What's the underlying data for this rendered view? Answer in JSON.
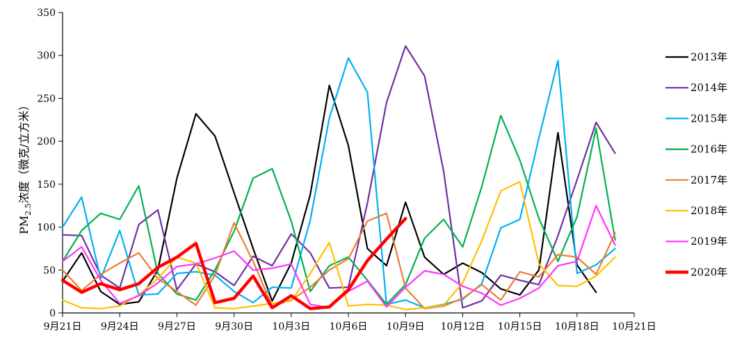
{
  "chart_data": {
    "type": "line",
    "title": "",
    "ylabel": "PM2.5浓度（微克/立方米）",
    "ylabel_parts": {
      "pre": "PM",
      "sub": "2.5",
      "post": "浓度（微克/立方米）"
    },
    "xlabel": "",
    "ylim": [
      0,
      350
    ],
    "yticks": [
      0,
      50,
      100,
      150,
      200,
      250,
      300,
      350
    ],
    "xlim": [
      0,
      30
    ],
    "xticks": [
      {
        "pos": 0,
        "label": "9月21日"
      },
      {
        "pos": 3,
        "label": "9月24日"
      },
      {
        "pos": 6,
        "label": "9月27日"
      },
      {
        "pos": 9,
        "label": "9月30日"
      },
      {
        "pos": 12,
        "label": "10月3日"
      },
      {
        "pos": 15,
        "label": "10月6日"
      },
      {
        "pos": 18,
        "label": "10月9日"
      },
      {
        "pos": 21,
        "label": "10月12日"
      },
      {
        "pos": 24,
        "label": "10月15日"
      },
      {
        "pos": 27,
        "label": "10月18日"
      },
      {
        "pos": 30,
        "label": "10月21日"
      }
    ],
    "grid": false,
    "legend_position": "right",
    "series": [
      {
        "name": "2013年",
        "color": "#000000",
        "highlight": false,
        "values": [
          37,
          70,
          25,
          10,
          13,
          50,
          157,
          232,
          206,
          140,
          75,
          14,
          58,
          138,
          265,
          195,
          75,
          55,
          129,
          65,
          45,
          58,
          47,
          28,
          21,
          50,
          210,
          56,
          24
        ]
      },
      {
        "name": "2014年",
        "color": "#7030A0",
        "highlight": false,
        "values": [
          91,
          90,
          44,
          29,
          103,
          120,
          27,
          57,
          48,
          32,
          66,
          55,
          92,
          70,
          29,
          30,
          128,
          245,
          311,
          276,
          165,
          6,
          14,
          44,
          38,
          33,
          90,
          155,
          222,
          186
        ]
      },
      {
        "name": "2015年",
        "color": "#00B0F0",
        "highlight": false,
        "values": [
          100,
          135,
          40,
          96,
          21,
          22,
          46,
          48,
          44,
          25,
          12,
          30,
          29,
          108,
          227,
          297,
          257,
          10,
          15,
          6,
          10,
          16,
          34,
          99,
          109,
          204,
          294,
          46,
          56,
          75
        ]
      },
      {
        "name": "2016年",
        "color": "#00B050",
        "highlight": false,
        "values": [
          60,
          96,
          116,
          109,
          148,
          46,
          22,
          15,
          50,
          95,
          157,
          168,
          107,
          25,
          55,
          65,
          38,
          10,
          33,
          87,
          109,
          77,
          147,
          230,
          178,
          110,
          60,
          112,
          215,
          85
        ]
      },
      {
        "name": "2017年",
        "color": "#ED7D31",
        "highlight": false,
        "values": [
          50,
          26,
          45,
          58,
          70,
          40,
          25,
          9,
          44,
          105,
          60,
          8,
          15,
          30,
          50,
          63,
          107,
          116,
          29,
          5,
          8,
          17,
          33,
          15,
          48,
          42,
          68,
          65,
          45,
          93
        ]
      },
      {
        "name": "2018年",
        "color": "#FFC000",
        "highlight": false,
        "values": [
          15,
          6,
          5,
          8,
          21,
          40,
          65,
          58,
          6,
          5,
          8,
          11,
          14,
          46,
          82,
          8,
          10,
          9,
          4,
          6,
          9,
          35,
          84,
          142,
          153,
          57,
          32,
          31,
          43,
          65
        ]
      },
      {
        "name": "2019年",
        "color": "#FF33FF",
        "highlight": false,
        "values": [
          60,
          77,
          38,
          11,
          20,
          35,
          54,
          57,
          64,
          72,
          50,
          52,
          57,
          10,
          6,
          25,
          37,
          7,
          30,
          49,
          45,
          31,
          23,
          9,
          17,
          29,
          55,
          60,
          125,
          79
        ]
      },
      {
        "name": "2020年",
        "color": "#FF0000",
        "highlight": true,
        "values": [
          38,
          24,
          34,
          27,
          34,
          53,
          65,
          81,
          12,
          17,
          43,
          6,
          20,
          5,
          7,
          27,
          61,
          86,
          110
        ]
      }
    ]
  }
}
